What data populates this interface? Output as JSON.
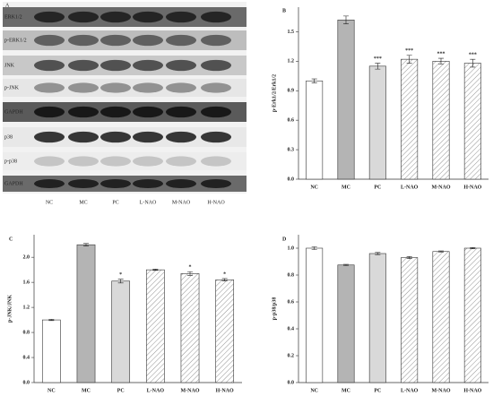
{
  "blot": {
    "label": "A",
    "rows": [
      "ERK1/2",
      "p-ERK1/2",
      "JNK",
      "p-JNK",
      "GAPDH",
      "p38",
      "p-p38",
      "GAPDH"
    ],
    "lanes": [
      "NC",
      "MC",
      "PC",
      "L-NAO",
      "M-NAO",
      "H-NAO"
    ]
  },
  "chart_data": [
    {
      "type": "bar",
      "label": "B",
      "ylabel": "p-Erk1/2/Erk1/2",
      "categories": [
        "NC",
        "MC",
        "PC",
        "L-NAO",
        "M-NAO",
        "H-NAO"
      ],
      "values": [
        1.0,
        1.62,
        1.15,
        1.22,
        1.2,
        1.18
      ],
      "errors": [
        0.02,
        0.04,
        0.03,
        0.04,
        0.03,
        0.04
      ],
      "annotations": [
        null,
        null,
        "***",
        "***",
        "***",
        "***"
      ],
      "colors": [
        "#ffffff",
        "#b4b4b4",
        "#d9d9d9",
        "#ffffff",
        "#ffffff",
        "#ffffff"
      ],
      "hatched": [
        false,
        false,
        false,
        true,
        true,
        true
      ],
      "ylim": [
        0,
        1.75
      ],
      "yticks": [
        {
          "value": 0,
          "label": "0.0"
        },
        0.3,
        0.6,
        0.9,
        1.2,
        1.5
      ]
    },
    {
      "type": "bar",
      "label": "C",
      "ylabel": "p-JNK/JNK",
      "categories": [
        "NC",
        "MC",
        "PC",
        "L-NAO",
        "M-NAO",
        "H-NAO"
      ],
      "values": [
        1.0,
        2.2,
        1.62,
        1.8,
        1.74,
        1.64
      ],
      "errors": [
        0.01,
        0.02,
        0.03,
        0.01,
        0.03,
        0.02
      ],
      "annotations": [
        null,
        null,
        "*",
        null,
        "*",
        "*"
      ],
      "colors": [
        "#ffffff",
        "#b4b4b4",
        "#d9d9d9",
        "#ffffff",
        "#ffffff",
        "#ffffff"
      ],
      "hatched": [
        false,
        false,
        false,
        true,
        true,
        true
      ],
      "ylim": [
        0,
        2.36
      ],
      "yticks": [
        {
          "value": 0,
          "label": "0.0"
        },
        0.4,
        0.8,
        1.2,
        1.6,
        {
          "value": 2,
          "label": "2.0"
        }
      ]
    },
    {
      "type": "bar",
      "label": "D",
      "ylabel": "p-p38/p38",
      "categories": [
        "NC",
        "MC",
        "PC",
        "L-NAO",
        "M-NAO",
        "H-NAO"
      ],
      "values": [
        1.0,
        0.875,
        0.96,
        0.93,
        0.975,
        1.0
      ],
      "errors": [
        0.01,
        0.005,
        0.008,
        0.008,
        0.005,
        0.005
      ],
      "annotations": [
        null,
        null,
        null,
        null,
        null,
        null
      ],
      "colors": [
        "#ffffff",
        "#b4b4b4",
        "#d9d9d9",
        "#ffffff",
        "#ffffff",
        "#ffffff"
      ],
      "hatched": [
        false,
        false,
        false,
        true,
        true,
        true
      ],
      "ylim": [
        0,
        1.1
      ],
      "yticks": [
        {
          "value": 0,
          "label": "0.0"
        },
        0.2,
        0.4,
        0.6,
        0.8,
        {
          "value": 1,
          "label": "1.0"
        }
      ]
    }
  ]
}
